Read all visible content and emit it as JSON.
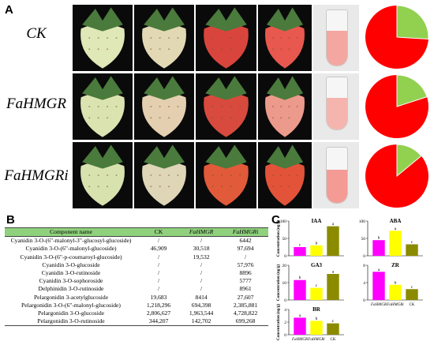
{
  "panelA": {
    "letter": "A",
    "rows": [
      {
        "label": "CK",
        "pie_red_fraction": 0.74
      },
      {
        "label": "FaHMGR",
        "pie_red_fraction": 0.8
      },
      {
        "label": "FaHMGRi",
        "pie_red_fraction": 0.86
      }
    ],
    "colors": {
      "red": "#ff0000",
      "green": "#92d050"
    }
  },
  "panelB": {
    "letter": "B",
    "headers": [
      "Component name",
      "CK",
      "FaHMGR",
      "FaHMGRi"
    ],
    "rows": [
      [
        "Cyanidin 3-O-(6\"-malonyl-3\"-glucosyl-glucoside)",
        "/",
        "/",
        "6442"
      ],
      [
        "Cyanidin 3-O-(6\"-malonyl-glucoside)",
        "46,909",
        "30,518",
        "97,694"
      ],
      [
        "Cyanidin 3-O-(6\"-p-coumaroyl-glucoside)",
        "/",
        "19,532",
        "/"
      ],
      [
        "Cyanidin 3-O-glucoside",
        "/",
        "/",
        "57,976"
      ],
      [
        "Cyanidin 3-O-rutinoside",
        "/",
        "/",
        "8896"
      ],
      [
        "Cyanidin 3-O-sophoroside",
        "/",
        "/",
        "5777"
      ],
      [
        "Delphinidin 3-O-rutinoside",
        "/",
        "/",
        "8961"
      ],
      [
        "Pelargonidin 3-acetylglucoside",
        "19,683",
        "8414",
        "27,607"
      ],
      [
        "Pelargonidin 3-O-(6\"-malonyl-glucoside)",
        "1,218,296",
        "694,398",
        "2,385,881"
      ],
      [
        "Pelargonidin 3-O-glucoside",
        "2,806,627",
        "1,963,544",
        "4,728,822"
      ],
      [
        "Pelargonidin 3-O-rutinoside",
        "344,207",
        "142,702",
        "699,268"
      ]
    ]
  },
  "panelC": {
    "letter": "C",
    "ylabel": "Concentration (ng/g)",
    "categories": [
      "FaHMGR",
      "FaHMGRi",
      "CK"
    ],
    "bar_colors": [
      "#ff00ff",
      "#ffff00",
      "#8b8b00"
    ],
    "chart_data": [
      {
        "type": "bar",
        "title": "IAA",
        "ylim": [
          0,
          100
        ],
        "ticks": [
          "0",
          "50",
          "100"
        ],
        "values": [
          25,
          30,
          85
        ],
        "letters": [
          "c",
          "b",
          "a"
        ]
      },
      {
        "type": "bar",
        "title": "ABA",
        "ylim": [
          0,
          100
        ],
        "ticks": [
          "0",
          "50",
          "100"
        ],
        "values": [
          45,
          72,
          33
        ],
        "letters": [
          "b",
          "a",
          "c"
        ]
      },
      {
        "type": "bar",
        "title": "GA3",
        "ylim": [
          0,
          20
        ],
        "ticks": [
          "0",
          "10",
          "20"
        ],
        "values": [
          11.5,
          7,
          15
        ],
        "letters": [
          "b",
          "c",
          "a"
        ]
      },
      {
        "type": "bar",
        "title": "ZR",
        "ylim": [
          0,
          8
        ],
        "ticks": [
          "0",
          "4",
          "8"
        ],
        "values": [
          6.5,
          3.5,
          2.5
        ],
        "letters": [
          "a",
          "b",
          "c"
        ]
      },
      {
        "type": "bar",
        "title": "BR",
        "ylim": [
          0,
          4
        ],
        "ticks": [
          "0",
          "2",
          "4"
        ],
        "values": [
          2.7,
          2.2,
          1.8
        ],
        "letters": [
          "a",
          "b",
          "c"
        ]
      }
    ]
  }
}
